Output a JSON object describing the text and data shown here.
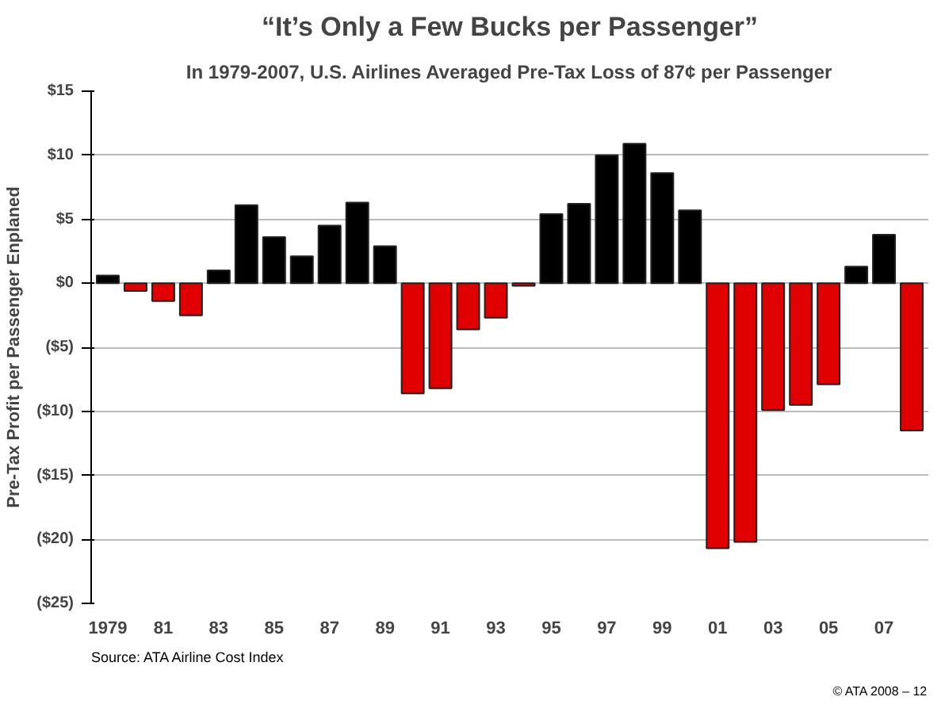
{
  "chart_data": {
    "type": "bar",
    "title": "“It’s Only a Few Bucks per Passenger”",
    "subtitle": "In 1979-2007, U.S. Airlines Averaged Pre-Tax Loss of 87¢ per Passenger",
    "ylabel": "Pre-Tax Profit per Passenger Enplaned",
    "categories": [
      "1979",
      null,
      "81",
      null,
      "83",
      null,
      "85",
      null,
      "87",
      null,
      "89",
      null,
      "91",
      null,
      "93",
      null,
      "95",
      null,
      "97",
      null,
      "99",
      null,
      "01",
      null,
      "03",
      null,
      "05",
      null,
      "07",
      null
    ],
    "values": [
      0.6,
      -0.6,
      -1.4,
      -2.5,
      1.0,
      6.1,
      3.6,
      2.1,
      4.5,
      6.3,
      2.9,
      -8.6,
      -8.2,
      -3.6,
      -2.7,
      -0.2,
      5.4,
      6.2,
      10.0,
      10.9,
      8.6,
      5.7,
      -20.7,
      -20.2,
      -9.9,
      -9.5,
      -7.9,
      1.3,
      3.8,
      -11.5
    ],
    "colors": [
      "#000000",
      "#e00000",
      "#e00000",
      "#e00000",
      "#000000",
      "#000000",
      "#000000",
      "#000000",
      "#000000",
      "#000000",
      "#000000",
      "#e00000",
      "#e00000",
      "#e00000",
      "#e00000",
      "#e00000",
      "#000000",
      "#000000",
      "#000000",
      "#000000",
      "#000000",
      "#000000",
      "#e00000",
      "#e00000",
      "#e00000",
      "#e00000",
      "#e00000",
      "#000000",
      "#000000",
      "#e00000"
    ],
    "ylim": [
      -25,
      15
    ],
    "yticks": [
      {
        "value": 15,
        "label": "$15"
      },
      {
        "value": 10,
        "label": "$10"
      },
      {
        "value": 5,
        "label": "$5"
      },
      {
        "value": 0,
        "label": "$0"
      },
      {
        "value": -5,
        "label": "($5)"
      },
      {
        "value": -10,
        "label": "($10)"
      },
      {
        "value": -15,
        "label": "($15)"
      },
      {
        "value": -20,
        "label": "($20)"
      },
      {
        "value": -25,
        "label": "($25)"
      }
    ],
    "grid": "y",
    "annotations": [
      "Source: ATA Airline Cost Index",
      "© ATA 2008 – 12"
    ]
  }
}
